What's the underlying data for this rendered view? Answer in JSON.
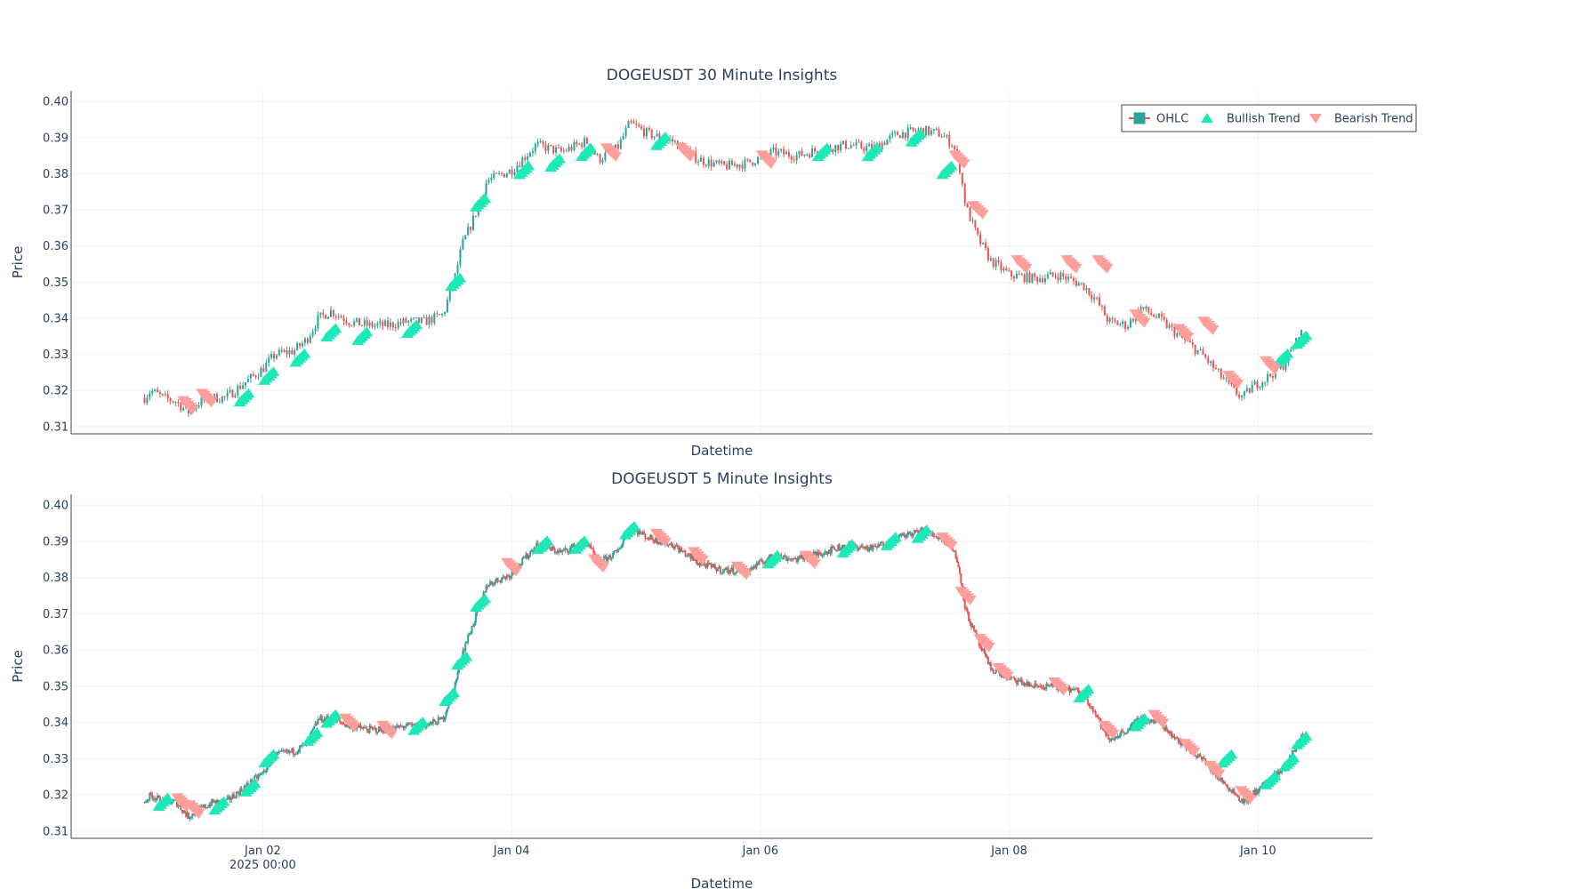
{
  "chart_data": [
    {
      "type": "candlestick",
      "title": "DOGEUSDT 30 Minute Insights",
      "xlabel": "Datetime",
      "ylabel": "Price",
      "ylim": [
        0.308,
        0.403
      ],
      "yticks": [
        "0.31",
        "0.32",
        "0.33",
        "0.34",
        "0.35",
        "0.36",
        "0.37",
        "0.38",
        "0.39",
        "0.40"
      ],
      "legend": {
        "placement": "top-right",
        "entries": [
          "OHLC",
          "Bullish Trend",
          "Bearish Trend"
        ]
      },
      "price_path": [
        [
          1.05,
          0.318
        ],
        [
          1.1,
          0.32
        ],
        [
          1.2,
          0.318
        ],
        [
          1.3,
          0.317
        ],
        [
          1.4,
          0.314
        ],
        [
          1.5,
          0.317
        ],
        [
          1.6,
          0.318
        ],
        [
          1.7,
          0.318
        ],
        [
          1.85,
          0.322
        ],
        [
          2.0,
          0.326
        ],
        [
          2.1,
          0.33
        ],
        [
          2.25,
          0.331
        ],
        [
          2.35,
          0.334
        ],
        [
          2.45,
          0.34
        ],
        [
          2.55,
          0.342
        ],
        [
          2.7,
          0.339
        ],
        [
          2.85,
          0.338
        ],
        [
          3.0,
          0.338
        ],
        [
          3.15,
          0.339
        ],
        [
          3.3,
          0.339
        ],
        [
          3.45,
          0.341
        ],
        [
          3.55,
          0.352
        ],
        [
          3.6,
          0.36
        ],
        [
          3.7,
          0.368
        ],
        [
          3.8,
          0.378
        ],
        [
          4.0,
          0.381
        ],
        [
          4.2,
          0.388
        ],
        [
          4.4,
          0.386
        ],
        [
          4.6,
          0.389
        ],
        [
          4.7,
          0.384
        ],
        [
          4.85,
          0.387
        ],
        [
          4.95,
          0.394
        ],
        [
          5.1,
          0.391
        ],
        [
          5.3,
          0.389
        ],
        [
          5.5,
          0.384
        ],
        [
          5.7,
          0.382
        ],
        [
          5.9,
          0.383
        ],
        [
          6.1,
          0.386
        ],
        [
          6.3,
          0.385
        ],
        [
          6.5,
          0.387
        ],
        [
          6.7,
          0.388
        ],
        [
          6.9,
          0.387
        ],
        [
          7.1,
          0.391
        ],
        [
          7.3,
          0.392
        ],
        [
          7.45,
          0.391
        ],
        [
          7.55,
          0.388
        ],
        [
          7.6,
          0.382
        ],
        [
          7.65,
          0.371
        ],
        [
          7.75,
          0.362
        ],
        [
          7.85,
          0.356
        ],
        [
          8.0,
          0.352
        ],
        [
          8.2,
          0.351
        ],
        [
          8.4,
          0.352
        ],
        [
          8.6,
          0.349
        ],
        [
          8.7,
          0.345
        ],
        [
          8.8,
          0.339
        ],
        [
          8.95,
          0.338
        ],
        [
          9.05,
          0.343
        ],
        [
          9.2,
          0.34
        ],
        [
          9.4,
          0.334
        ],
        [
          9.55,
          0.33
        ],
        [
          9.7,
          0.324
        ],
        [
          9.8,
          0.32
        ],
        [
          9.88,
          0.318
        ],
        [
          9.95,
          0.321
        ],
        [
          10.05,
          0.323
        ],
        [
          10.2,
          0.327
        ],
        [
          10.3,
          0.333
        ],
        [
          10.35,
          0.336
        ]
      ],
      "bullish_markers": [
        [
          1.85,
          0.318
        ],
        [
          2.05,
          0.324
        ],
        [
          2.3,
          0.329
        ],
        [
          2.55,
          0.336
        ],
        [
          2.8,
          0.335
        ],
        [
          3.2,
          0.337
        ],
        [
          3.55,
          0.35
        ],
        [
          3.75,
          0.372
        ],
        [
          4.1,
          0.381
        ],
        [
          4.35,
          0.383
        ],
        [
          4.6,
          0.386
        ],
        [
          5.2,
          0.389
        ],
        [
          6.5,
          0.386
        ],
        [
          6.9,
          0.386
        ],
        [
          7.25,
          0.39
        ],
        [
          7.5,
          0.381
        ],
        [
          10.2,
          0.329
        ],
        [
          10.35,
          0.334
        ]
      ],
      "bearish_markers": [
        [
          1.4,
          0.316
        ],
        [
          1.55,
          0.318
        ],
        [
          4.8,
          0.386
        ],
        [
          5.4,
          0.386
        ],
        [
          6.05,
          0.384
        ],
        [
          7.6,
          0.384
        ],
        [
          7.75,
          0.37
        ],
        [
          8.1,
          0.355
        ],
        [
          8.5,
          0.355
        ],
        [
          8.75,
          0.355
        ],
        [
          9.05,
          0.34
        ],
        [
          9.4,
          0.336
        ],
        [
          9.6,
          0.338
        ],
        [
          9.8,
          0.323
        ],
        [
          10.1,
          0.327
        ]
      ]
    },
    {
      "type": "candlestick",
      "title": "DOGEUSDT 5 Minute Insights",
      "xlabel": "Datetime",
      "ylabel": "Price",
      "ylim": [
        0.308,
        0.403
      ],
      "yticks": [
        "0.31",
        "0.32",
        "0.33",
        "0.34",
        "0.35",
        "0.36",
        "0.37",
        "0.38",
        "0.39",
        "0.40"
      ],
      "xticks": [
        {
          "day": 2,
          "label": "Jan 02",
          "sub": "2025 00:00"
        },
        {
          "day": 4,
          "label": "Jan 04",
          "sub": ""
        },
        {
          "day": 6,
          "label": "Jan 06",
          "sub": ""
        },
        {
          "day": 8,
          "label": "Jan 08",
          "sub": ""
        },
        {
          "day": 10,
          "label": "Jan 10",
          "sub": ""
        }
      ],
      "xrange_days": [
        0.46,
        10.92
      ],
      "price_path": [
        [
          1.05,
          0.318
        ],
        [
          1.1,
          0.32
        ],
        [
          1.2,
          0.318
        ],
        [
          1.3,
          0.318
        ],
        [
          1.4,
          0.314
        ],
        [
          1.5,
          0.316
        ],
        [
          1.6,
          0.318
        ],
        [
          1.7,
          0.318
        ],
        [
          1.85,
          0.322
        ],
        [
          2.0,
          0.326
        ],
        [
          2.1,
          0.331
        ],
        [
          2.25,
          0.332
        ],
        [
          2.35,
          0.334
        ],
        [
          2.45,
          0.341
        ],
        [
          2.55,
          0.341
        ],
        [
          2.7,
          0.339
        ],
        [
          2.85,
          0.338
        ],
        [
          3.0,
          0.338
        ],
        [
          3.15,
          0.339
        ],
        [
          3.3,
          0.339
        ],
        [
          3.45,
          0.341
        ],
        [
          3.55,
          0.351
        ],
        [
          3.6,
          0.359
        ],
        [
          3.7,
          0.368
        ],
        [
          3.8,
          0.378
        ],
        [
          4.0,
          0.381
        ],
        [
          4.2,
          0.389
        ],
        [
          4.4,
          0.387
        ],
        [
          4.6,
          0.39
        ],
        [
          4.7,
          0.384
        ],
        [
          4.85,
          0.387
        ],
        [
          4.95,
          0.394
        ],
        [
          5.1,
          0.391
        ],
        [
          5.3,
          0.389
        ],
        [
          5.5,
          0.384
        ],
        [
          5.7,
          0.382
        ],
        [
          5.9,
          0.382
        ],
        [
          6.1,
          0.386
        ],
        [
          6.3,
          0.385
        ],
        [
          6.5,
          0.387
        ],
        [
          6.7,
          0.389
        ],
        [
          6.9,
          0.388
        ],
        [
          7.1,
          0.391
        ],
        [
          7.3,
          0.393
        ],
        [
          7.45,
          0.391
        ],
        [
          7.55,
          0.388
        ],
        [
          7.6,
          0.382
        ],
        [
          7.65,
          0.371
        ],
        [
          7.75,
          0.362
        ],
        [
          7.85,
          0.355
        ],
        [
          8.0,
          0.352
        ],
        [
          8.2,
          0.35
        ],
        [
          8.4,
          0.35
        ],
        [
          8.6,
          0.348
        ],
        [
          8.7,
          0.342
        ],
        [
          8.8,
          0.335
        ],
        [
          8.95,
          0.338
        ],
        [
          9.05,
          0.341
        ],
        [
          9.2,
          0.34
        ],
        [
          9.4,
          0.334
        ],
        [
          9.55,
          0.33
        ],
        [
          9.7,
          0.324
        ],
        [
          9.8,
          0.321
        ],
        [
          9.88,
          0.318
        ],
        [
          9.95,
          0.32
        ],
        [
          10.05,
          0.323
        ],
        [
          10.2,
          0.327
        ],
        [
          10.3,
          0.333
        ],
        [
          10.35,
          0.336
        ]
      ],
      "bullish_markers": [
        [
          1.2,
          0.318
        ],
        [
          1.65,
          0.317
        ],
        [
          1.9,
          0.322
        ],
        [
          2.05,
          0.33
        ],
        [
          2.4,
          0.336
        ],
        [
          2.55,
          0.341
        ],
        [
          3.25,
          0.339
        ],
        [
          3.5,
          0.347
        ],
        [
          3.6,
          0.357
        ],
        [
          3.75,
          0.373
        ],
        [
          4.25,
          0.389
        ],
        [
          4.55,
          0.389
        ],
        [
          4.95,
          0.393
        ],
        [
          6.1,
          0.385
        ],
        [
          6.7,
          0.388
        ],
        [
          7.05,
          0.39
        ],
        [
          7.3,
          0.392
        ],
        [
          8.6,
          0.348
        ],
        [
          9.05,
          0.34
        ],
        [
          9.75,
          0.33
        ],
        [
          10.1,
          0.324
        ],
        [
          10.25,
          0.329
        ],
        [
          10.35,
          0.335
        ]
      ],
      "bearish_markers": [
        [
          1.35,
          0.318
        ],
        [
          1.45,
          0.316
        ],
        [
          2.7,
          0.34
        ],
        [
          3.0,
          0.338
        ],
        [
          4.0,
          0.383
        ],
        [
          4.7,
          0.384
        ],
        [
          5.2,
          0.391
        ],
        [
          5.5,
          0.386
        ],
        [
          5.85,
          0.382
        ],
        [
          6.4,
          0.385
        ],
        [
          7.5,
          0.39
        ],
        [
          7.65,
          0.375
        ],
        [
          7.8,
          0.362
        ],
        [
          7.95,
          0.354
        ],
        [
          8.4,
          0.35
        ],
        [
          8.8,
          0.338
        ],
        [
          9.2,
          0.341
        ],
        [
          9.45,
          0.333
        ],
        [
          9.65,
          0.327
        ],
        [
          9.9,
          0.32
        ]
      ]
    }
  ]
}
